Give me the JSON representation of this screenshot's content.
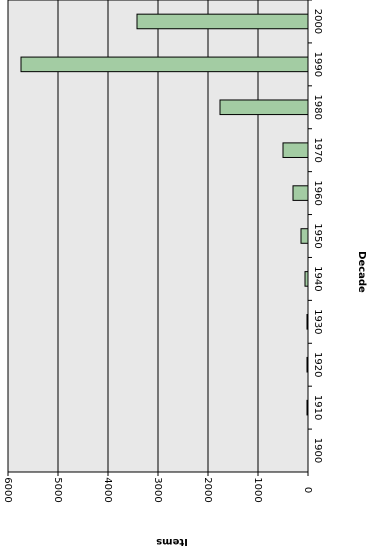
{
  "chart_data": {
    "type": "bar",
    "orientation": "horizontal",
    "x_label": "Items",
    "y_label": "Decade",
    "categories": [
      "2000",
      "1990",
      "1980",
      "1970",
      "1960",
      "1950",
      "1940",
      "1930",
      "1920",
      "1910",
      "1900"
    ],
    "values": [
      3420,
      5740,
      1760,
      500,
      300,
      140,
      60,
      20,
      20,
      20,
      0
    ],
    "color": "#a3cca3",
    "xlim": [
      0,
      6000
    ],
    "xticks": [
      0,
      1000,
      2000,
      3000,
      4000,
      5000,
      6000
    ],
    "grid": true
  }
}
